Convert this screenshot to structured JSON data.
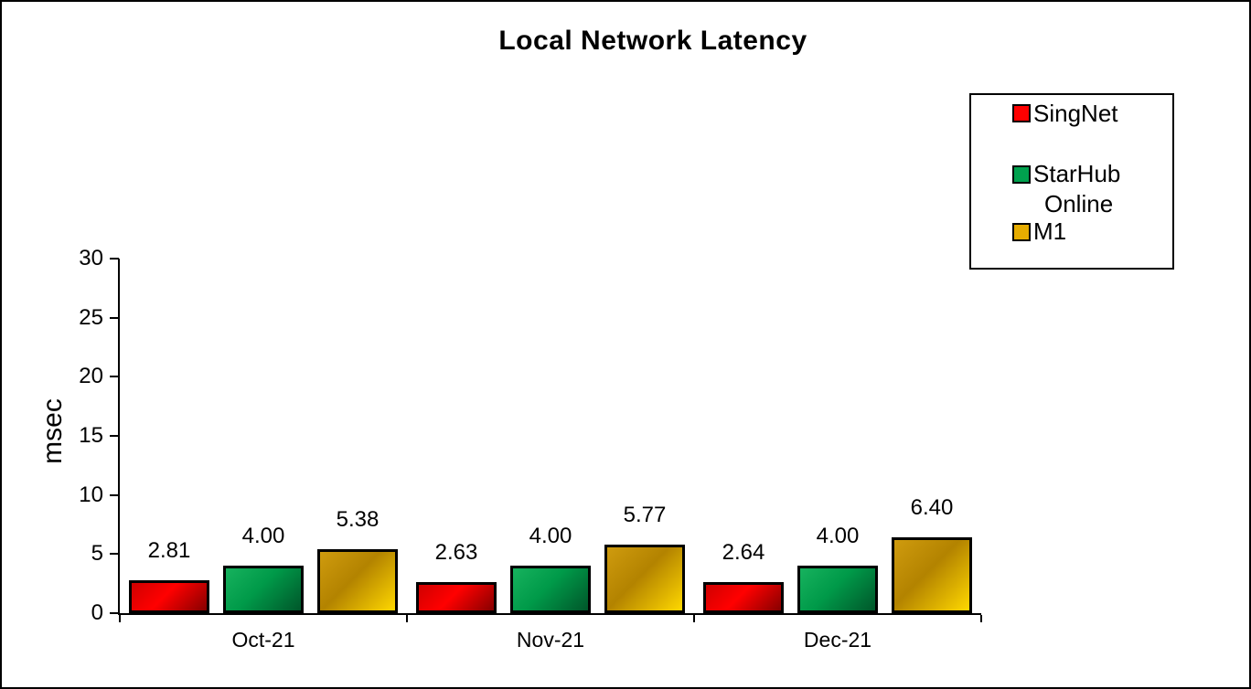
{
  "title": "Local Network Latency",
  "y_axis": {
    "label": "msec"
  },
  "legend": {
    "items": [
      {
        "lines": [
          "SingNet"
        ]
      },
      {
        "lines": [
          "StarHub",
          "Online"
        ]
      },
      {
        "lines": [
          "M1"
        ]
      }
    ]
  },
  "chart_data": {
    "type": "bar",
    "title": "Local Network Latency",
    "xlabel": "",
    "ylabel": "msec",
    "ylim": [
      0,
      30
    ],
    "ytick_interval": 5,
    "grid": false,
    "legend_position": "top-right",
    "categories": [
      "Oct-21",
      "Nov-21",
      "Dec-21"
    ],
    "series": [
      {
        "name": "SingNet",
        "color": "#ff0000",
        "gradient": [
          "#d00000",
          "#ff0000",
          "#860000"
        ],
        "values": [
          2.81,
          2.63,
          2.64
        ]
      },
      {
        "name": "StarHub Online",
        "color": "#00a14e",
        "gradient": [
          "#17b25e",
          "#009a49",
          "#00562a"
        ],
        "values": [
          4.0,
          4.0,
          4.0
        ]
      },
      {
        "name": "M1",
        "color": "#e6ac00",
        "gradient": [
          "#cf9b0e",
          "#b38300",
          "#ffd800"
        ],
        "values": [
          5.38,
          5.77,
          6.4
        ]
      }
    ],
    "value_labels": [
      [
        "2.81",
        "4.00",
        "5.38"
      ],
      [
        "2.63",
        "4.00",
        "5.77"
      ],
      [
        "2.64",
        "4.00",
        "6.40"
      ]
    ]
  }
}
